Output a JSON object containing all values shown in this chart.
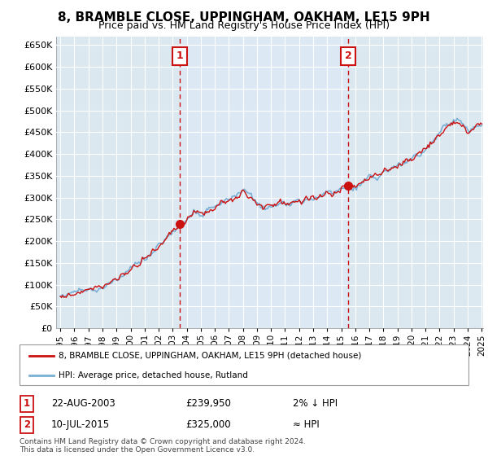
{
  "title": "8, BRAMBLE CLOSE, UPPINGHAM, OAKHAM, LE15 9PH",
  "subtitle": "Price paid vs. HM Land Registry's House Price Index (HPI)",
  "ylim": [
    0,
    670000
  ],
  "yticks": [
    0,
    50000,
    100000,
    150000,
    200000,
    250000,
    300000,
    350000,
    400000,
    450000,
    500000,
    550000,
    600000,
    650000
  ],
  "hpi_color": "#7ab0d4",
  "price_color": "#cc1111",
  "sale1_year": 2003,
  "sale1_month": 7,
  "sale1_price": 239950,
  "sale2_year": 2015,
  "sale2_month": 6,
  "sale2_price": 325000,
  "sale1_date_str": "22-AUG-2003",
  "sale1_price_str": "£239,950",
  "sale1_label": "2% ↓ HPI",
  "sale2_date_str": "10-JUL-2015",
  "sale2_price_str": "£325,000",
  "sale2_label": "≈ HPI",
  "legend_line1": "8, BRAMBLE CLOSE, UPPINGHAM, OAKHAM, LE15 9PH (detached house)",
  "legend_line2": "HPI: Average price, detached house, Rutland",
  "footer": "Contains HM Land Registry data © Crown copyright and database right 2024.\nThis data is licensed under the Open Government Licence v3.0.",
  "highlight_color": "#dce9f5",
  "start_year": 1995,
  "end_year": 2025
}
